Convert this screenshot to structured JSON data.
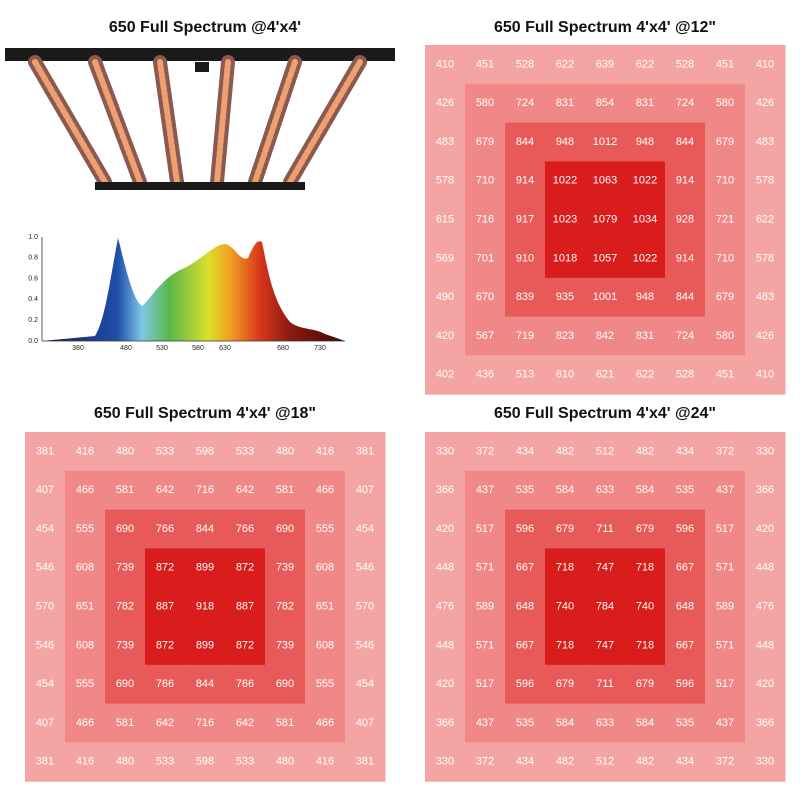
{
  "fixture": {
    "title": "650 Full Spectrum @4'x4'"
  },
  "spectrum": {
    "yticks": [
      "1.0",
      "0.8",
      "0.6",
      "0.4",
      "0.2",
      "0.0"
    ],
    "xticks": [
      "380",
      "480",
      "530",
      "580",
      "630",
      "680",
      "730"
    ]
  },
  "panels": [
    {
      "title": "650 Full Spectrum 4'x4' @12\"",
      "rows": [
        [
          410,
          451,
          528,
          622,
          639,
          622,
          528,
          451,
          410
        ],
        [
          426,
          580,
          724,
          831,
          854,
          831,
          724,
          580,
          426
        ],
        [
          483,
          679,
          844,
          948,
          1012,
          948,
          844,
          679,
          483
        ],
        [
          578,
          710,
          914,
          1022,
          1063,
          1022,
          914,
          710,
          578
        ],
        [
          615,
          716,
          917,
          1023,
          1079,
          1034,
          928,
          721,
          622
        ],
        [
          569,
          701,
          910,
          1018,
          1057,
          1022,
          914,
          710,
          578
        ],
        [
          490,
          670,
          839,
          935,
          1001,
          948,
          844,
          679,
          483
        ],
        [
          420,
          567,
          719,
          823,
          842,
          831,
          724,
          580,
          426
        ],
        [
          402,
          436,
          513,
          610,
          621,
          622,
          528,
          451,
          410
        ]
      ]
    },
    {
      "title": "650 Full Spectrum 4'x4' @18\"",
      "rows": [
        [
          381,
          416,
          480,
          533,
          598,
          533,
          480,
          416,
          381
        ],
        [
          407,
          466,
          581,
          642,
          716,
          642,
          581,
          466,
          407
        ],
        [
          454,
          555,
          690,
          766,
          844,
          766,
          690,
          555,
          454
        ],
        [
          546,
          608,
          739,
          872,
          899,
          872,
          739,
          608,
          546
        ],
        [
          570,
          651,
          782,
          887,
          918,
          887,
          782,
          651,
          570
        ],
        [
          546,
          608,
          739,
          872,
          899,
          872,
          739,
          608,
          546
        ],
        [
          454,
          555,
          690,
          766,
          844,
          766,
          690,
          555,
          454
        ],
        [
          407,
          466,
          581,
          642,
          716,
          642,
          581,
          466,
          407
        ],
        [
          381,
          416,
          480,
          533,
          598,
          533,
          480,
          416,
          381
        ]
      ]
    },
    {
      "title": "650 Full Spectrum 4'x4' @24\"",
      "rows": [
        [
          330,
          372,
          434,
          482,
          512,
          482,
          434,
          372,
          330
        ],
        [
          366,
          437,
          535,
          584,
          633,
          584,
          535,
          437,
          366
        ],
        [
          420,
          517,
          596,
          679,
          711,
          679,
          596,
          517,
          420
        ],
        [
          448,
          571,
          667,
          718,
          747,
          718,
          667,
          571,
          448
        ],
        [
          476,
          589,
          648,
          740,
          784,
          740,
          648,
          589,
          476
        ],
        [
          448,
          571,
          667,
          718,
          747,
          718,
          667,
          571,
          448
        ],
        [
          420,
          517,
          596,
          679,
          711,
          679,
          596,
          517,
          420
        ],
        [
          366,
          437,
          535,
          584,
          633,
          584,
          535,
          437,
          366
        ],
        [
          330,
          372,
          434,
          482,
          512,
          482,
          434,
          372,
          330
        ]
      ]
    }
  ]
}
